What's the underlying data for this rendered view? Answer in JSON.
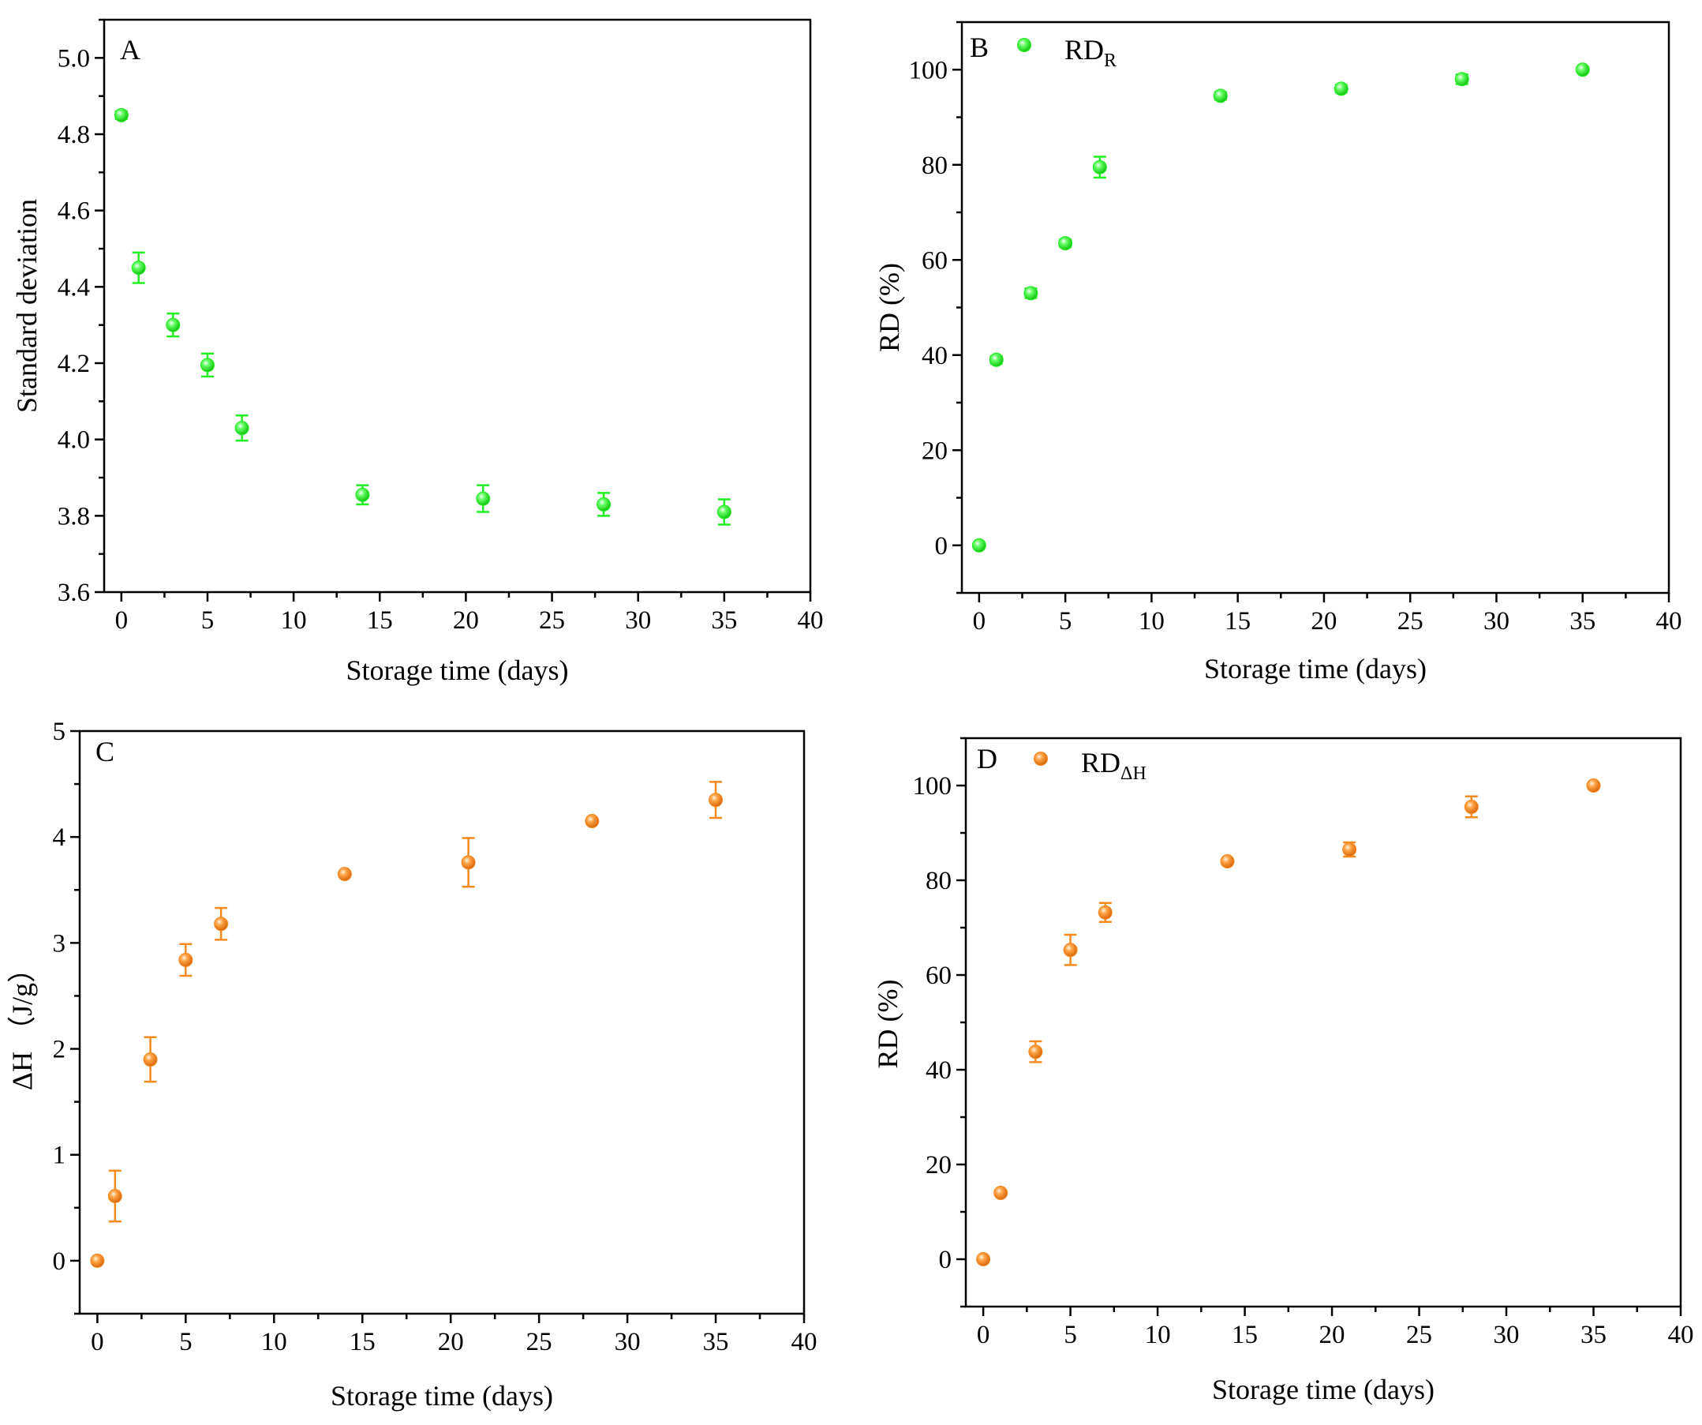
{
  "colors": {
    "green": "#22ee22",
    "orange": "#f58a1f",
    "axis": "#000000"
  },
  "chart_data": [
    {
      "id": "A",
      "type": "scatter",
      "panel_label": "A",
      "xlabel": "Storage time (days)",
      "ylabel": "Standard deviation",
      "xlim": [
        -1,
        40
      ],
      "ylim": [
        3.6,
        5.1
      ],
      "xticks": [
        0,
        5,
        10,
        15,
        20,
        25,
        30,
        35,
        40
      ],
      "yticks": [
        3.6,
        3.8,
        4.0,
        4.2,
        4.4,
        4.6,
        4.8,
        5.0
      ],
      "ytick_labels": [
        "3.6",
        "3.8",
        "4.0",
        "4.2",
        "4.4",
        "4.6",
        "4.8",
        "5.0"
      ],
      "color": "green",
      "legend": null,
      "x": [
        0,
        1,
        3,
        5,
        7,
        14,
        21,
        28,
        35
      ],
      "y": [
        4.85,
        4.45,
        4.3,
        4.195,
        4.03,
        3.855,
        3.845,
        3.83,
        3.81
      ],
      "err": [
        0.01,
        0.04,
        0.03,
        0.03,
        0.033,
        0.025,
        0.035,
        0.03,
        0.033
      ]
    },
    {
      "id": "B",
      "type": "scatter",
      "panel_label": "B",
      "xlabel": "Storage time (days)",
      "ylabel": "RD (%)",
      "xlim": [
        -1,
        40
      ],
      "ylim": [
        -10,
        110
      ],
      "xticks": [
        0,
        5,
        10,
        15,
        20,
        25,
        30,
        35,
        40
      ],
      "yticks": [
        0,
        20,
        40,
        60,
        80,
        100
      ],
      "ytick_labels": [
        "0",
        "20",
        "40",
        "60",
        "80",
        "100"
      ],
      "color": "green",
      "legend": {
        "main": "RD",
        "sub": "R"
      },
      "x": [
        0,
        1,
        3,
        5,
        7,
        14,
        21,
        28,
        35
      ],
      "y": [
        0,
        39,
        53,
        63.5,
        79.5,
        94.5,
        96,
        98,
        100
      ],
      "err": [
        0,
        0.8,
        1,
        0.8,
        2.2,
        0.8,
        0.8,
        1,
        0.5
      ]
    },
    {
      "id": "C",
      "type": "scatter",
      "panel_label": "C",
      "xlabel": "Storage time (days)",
      "ylabel": "ΔH （J/g）",
      "xlim": [
        -1,
        40
      ],
      "ylim": [
        -0.5,
        5
      ],
      "xticks": [
        0,
        5,
        10,
        15,
        20,
        25,
        30,
        35,
        40
      ],
      "yticks": [
        0,
        1,
        2,
        3,
        4,
        5
      ],
      "ytick_labels": [
        "0",
        "1",
        "2",
        "3",
        "4",
        "5"
      ],
      "color": "orange",
      "legend": null,
      "x": [
        0,
        1,
        3,
        5,
        7,
        14,
        21,
        28,
        35
      ],
      "y": [
        0,
        0.61,
        1.9,
        2.84,
        3.18,
        3.65,
        3.76,
        4.15,
        4.35
      ],
      "err": [
        0,
        0.24,
        0.21,
        0.15,
        0.15,
        0,
        0.23,
        0,
        0.17
      ]
    },
    {
      "id": "D",
      "type": "scatter",
      "panel_label": "D",
      "xlabel": "Storage time (days)",
      "ylabel": "RD (%)",
      "xlim": [
        -1,
        40
      ],
      "ylim": [
        -10,
        110
      ],
      "xticks": [
        0,
        5,
        10,
        15,
        20,
        25,
        30,
        35,
        40
      ],
      "yticks": [
        0,
        20,
        40,
        60,
        80,
        100
      ],
      "ytick_labels": [
        "0",
        "20",
        "40",
        "60",
        "80",
        "100"
      ],
      "color": "orange",
      "legend": {
        "main": "RD",
        "sub": "ΔH"
      },
      "x": [
        0,
        1,
        3,
        5,
        7,
        14,
        21,
        28,
        35
      ],
      "y": [
        0,
        14,
        43.8,
        65.3,
        73.2,
        84,
        86.5,
        95.5,
        100
      ],
      "err": [
        0,
        0,
        2.2,
        3.2,
        2,
        0,
        1.5,
        2.2,
        0
      ]
    }
  ]
}
